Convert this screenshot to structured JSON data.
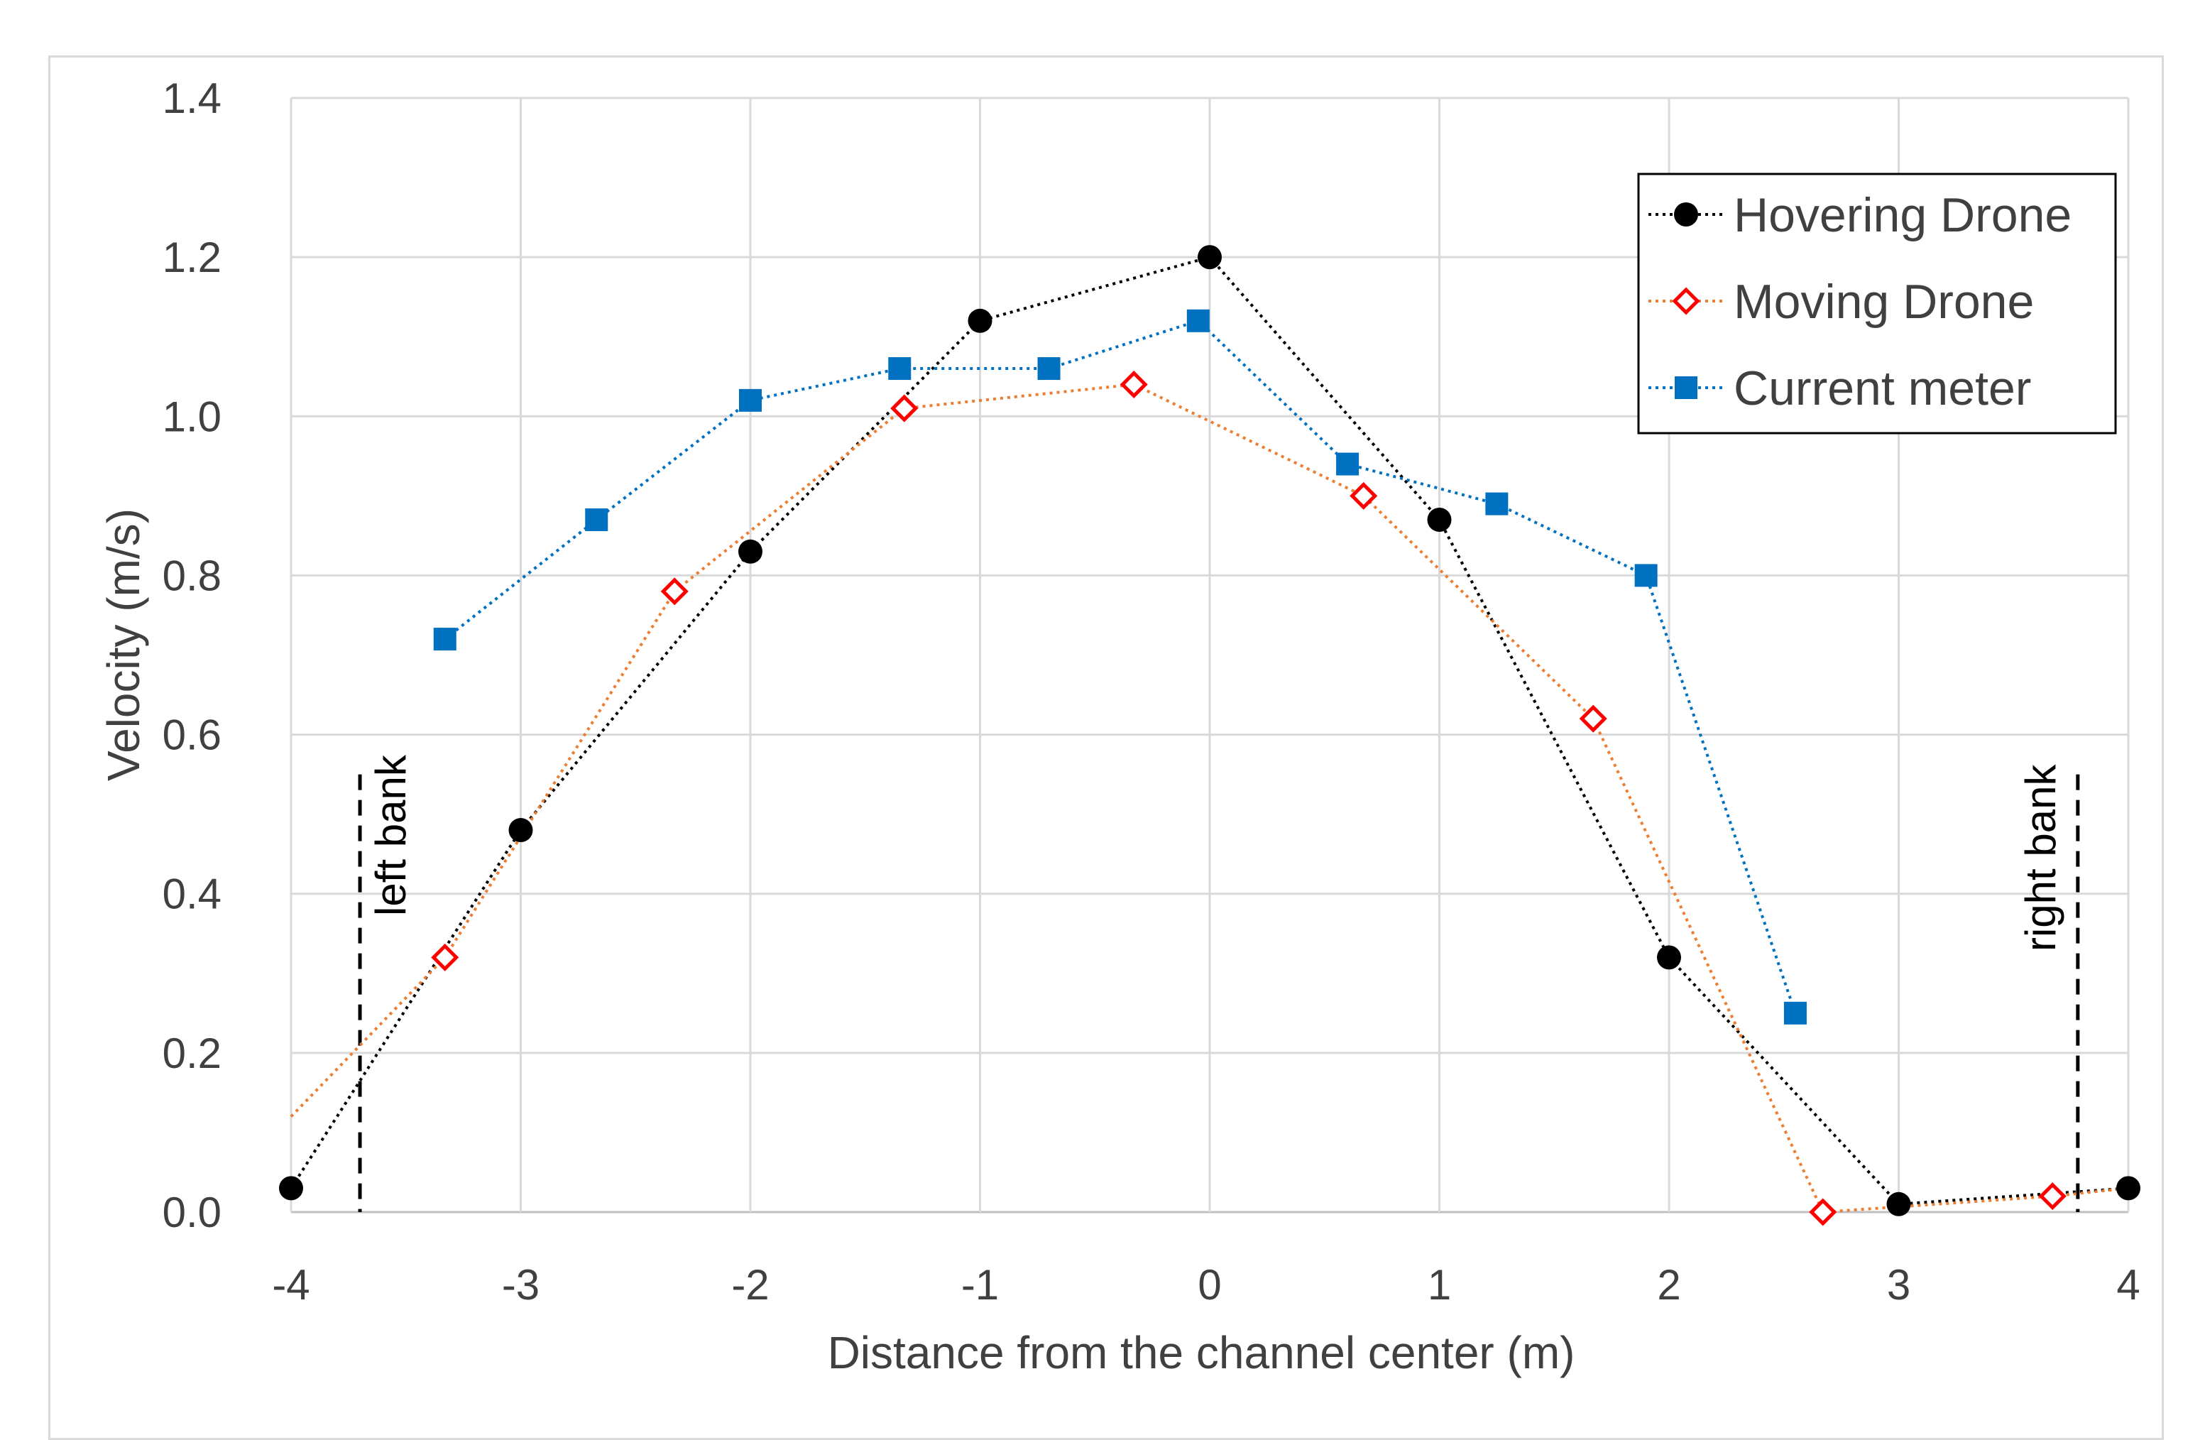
{
  "chart_data": {
    "type": "line",
    "title": "",
    "xlabel": "Distance from the channel center (m)",
    "ylabel": "Velocity (m/s)",
    "xlim": [
      -4,
      4
    ],
    "ylim": [
      0.0,
      1.4
    ],
    "xticks": [
      "-4",
      "-3",
      "-2",
      "-1",
      "0",
      "1",
      "2",
      "3",
      "4"
    ],
    "yticks": [
      "0.0",
      "0.2",
      "0.4",
      "0.6",
      "0.8",
      "1.0",
      "1.2",
      "1.4"
    ],
    "grid": true,
    "legend_position": "top-right",
    "series": [
      {
        "name": "Hovering Drone",
        "color": "#000000",
        "marker": "circle",
        "x": [
          -4,
          -3,
          -2,
          -1,
          0,
          1,
          2,
          3,
          4
        ],
        "y": [
          0.03,
          0.48,
          0.83,
          1.12,
          1.2,
          0.87,
          0.32,
          0.01,
          0.03
        ]
      },
      {
        "name": "Moving Drone",
        "color": "#ed7d31",
        "marker_color": "#ff0000",
        "marker": "diamond-open",
        "x": [
          -4.0,
          -3.33,
          -2.33,
          -1.33,
          -0.33,
          0.67,
          1.67,
          2.67,
          3.67,
          4.0
        ],
        "y": [
          0.12,
          0.32,
          0.78,
          1.01,
          1.04,
          0.9,
          0.62,
          0.0,
          0.02,
          0.03
        ],
        "marker_visible": [
          false,
          true,
          true,
          true,
          true,
          true,
          true,
          true,
          true,
          false
        ]
      },
      {
        "name": "Current meter",
        "color": "#0070c0",
        "marker": "square",
        "x": [
          -3.33,
          -2.67,
          -2.0,
          -1.35,
          -0.7,
          -0.05,
          0.6,
          1.25,
          1.9,
          2.55
        ],
        "y": [
          0.72,
          0.87,
          1.02,
          1.06,
          1.06,
          1.12,
          0.94,
          0.89,
          0.8,
          0.25
        ]
      }
    ],
    "annotations": [
      {
        "label": "left bank",
        "x": -3.7,
        "y_top": 0.55
      },
      {
        "label": "right bank",
        "x": 3.78,
        "y_top": 0.55
      }
    ]
  }
}
